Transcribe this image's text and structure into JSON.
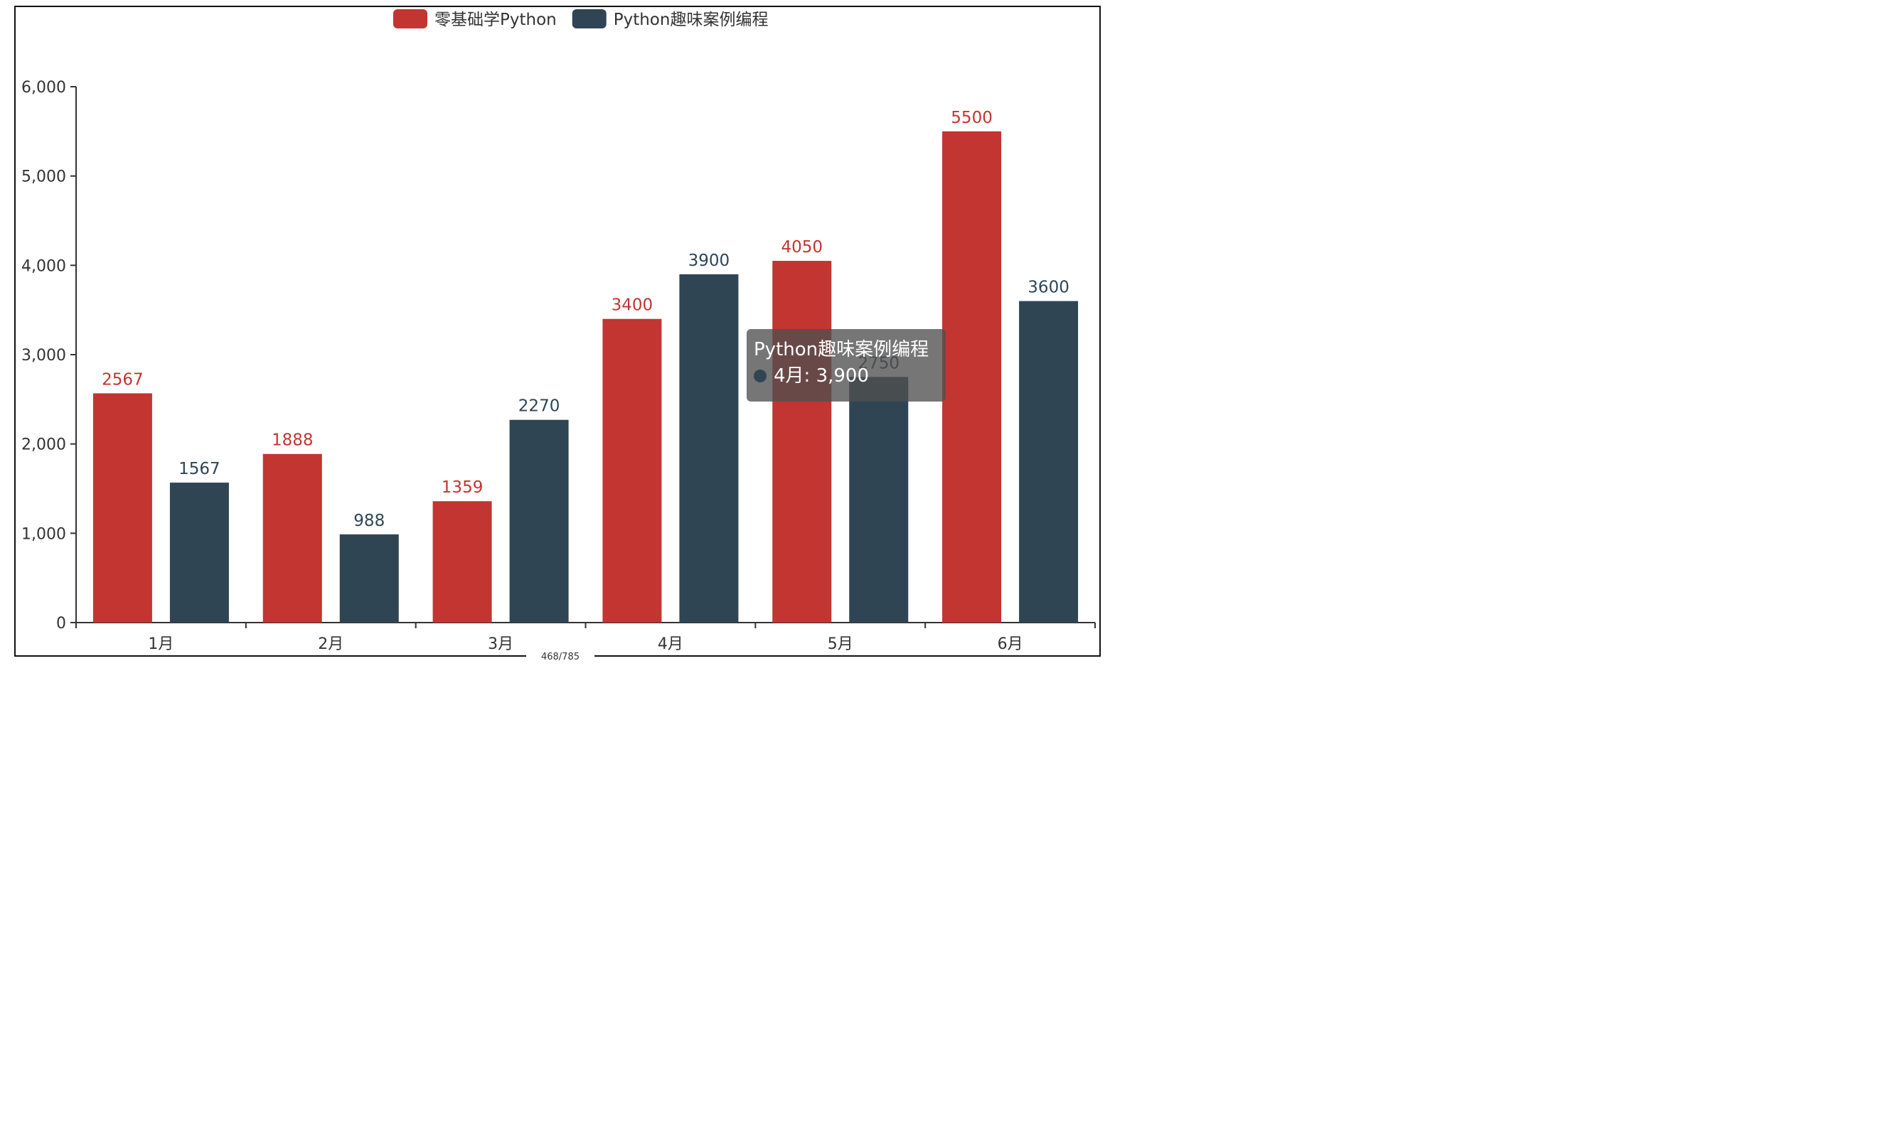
{
  "chart_data": {
    "type": "bar",
    "categories": [
      "1月",
      "2月",
      "3月",
      "4月",
      "5月",
      "6月"
    ],
    "series": [
      {
        "name": "零基础学Python",
        "color": "#c23531",
        "values": [
          2567,
          1888,
          1359,
          3400,
          4050,
          5500
        ]
      },
      {
        "name": "Python趣味案例编程",
        "color": "#2f4554",
        "values": [
          1567,
          988,
          2270,
          3900,
          2750,
          3600
        ]
      }
    ],
    "ylim": [
      0,
      6000
    ],
    "yticks": [
      "0",
      "1,000",
      "2,000",
      "3,000",
      "4,000",
      "5,000",
      "6,000"
    ],
    "legend_position": "top-center",
    "grid": false,
    "data_labels": true
  },
  "tooltip": {
    "title": "Python趣味案例编程",
    "text": "4月: 3,900",
    "color": "#2f4554"
  },
  "footer": {
    "page_indicator": "468/785"
  }
}
